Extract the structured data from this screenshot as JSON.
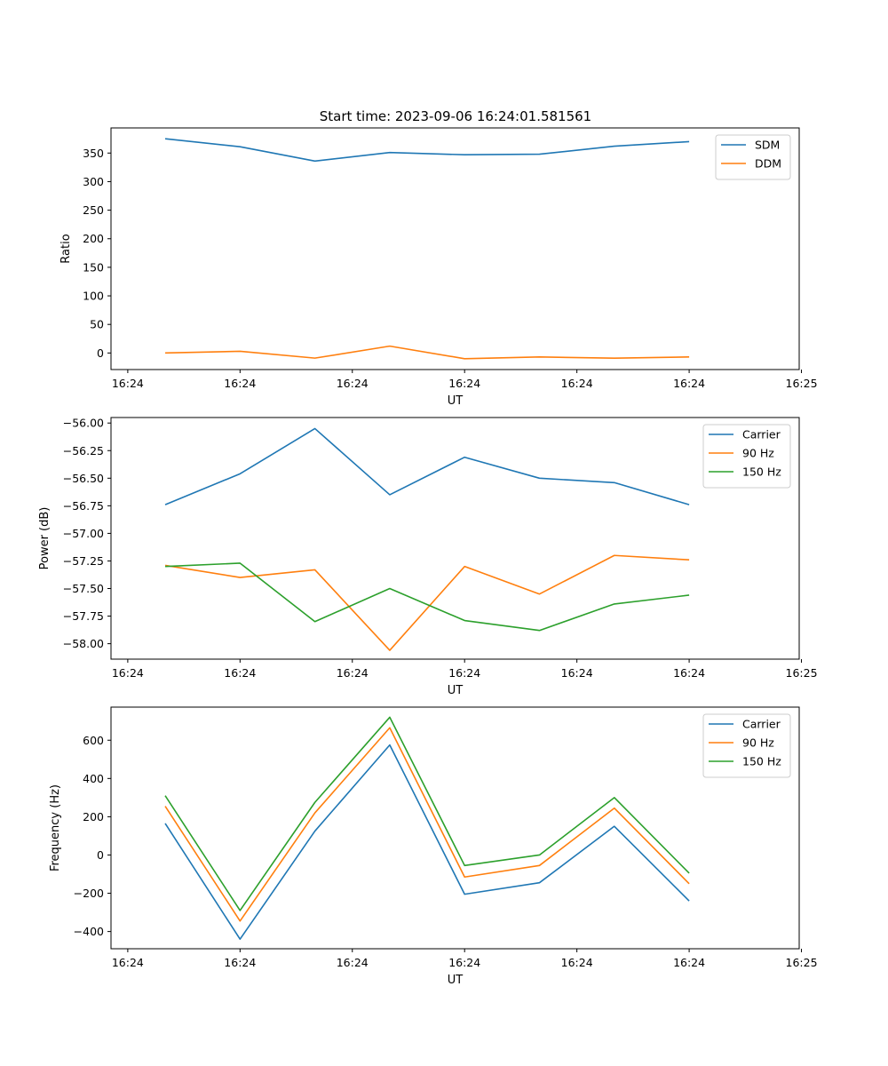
{
  "figure": {
    "title": "Start time: 2023-09-06 16:24:01.581561"
  },
  "chart_data": [
    {
      "type": "line",
      "title": "Start time: 2023-09-06 16:24:01.581561",
      "xlabel": "UT",
      "ylabel": "Ratio",
      "x": [
        1,
        2,
        3,
        4,
        5,
        6,
        7,
        8
      ],
      "xlim": [
        0.276,
        9.47
      ],
      "xticks": [
        0.5,
        2.0,
        3.5,
        5.0,
        6.5,
        8.0,
        9.5
      ],
      "xtick_labels": [
        "16:24",
        "16:24",
        "16:24",
        "16:24",
        "16:24",
        "16:24",
        "16:25"
      ],
      "ylim": [
        -29,
        394
      ],
      "yticks": [
        0,
        50,
        100,
        150,
        200,
        250,
        300,
        350
      ],
      "ytick_labels": [
        "0",
        "50",
        "100",
        "150",
        "200",
        "250",
        "300",
        "350"
      ],
      "legend": "top-right",
      "series": [
        {
          "name": "SDM",
          "color": "#1f77b4",
          "values": [
            375,
            361,
            336,
            351,
            347,
            348,
            362,
            370
          ]
        },
        {
          "name": "DDM",
          "color": "#ff7f0e",
          "values": [
            0,
            3,
            -9,
            12,
            -10,
            -7,
            -9,
            -7
          ]
        }
      ]
    },
    {
      "type": "line",
      "title": "",
      "xlabel": "UT",
      "ylabel": "Power (dB)",
      "x": [
        1,
        2,
        3,
        4,
        5,
        6,
        7,
        8
      ],
      "xlim": [
        0.276,
        9.47
      ],
      "xticks": [
        0.5,
        2.0,
        3.5,
        5.0,
        6.5,
        8.0,
        9.5
      ],
      "xtick_labels": [
        "16:24",
        "16:24",
        "16:24",
        "16:24",
        "16:24",
        "16:24",
        "16:25"
      ],
      "ylim": [
        -58.14,
        -55.95
      ],
      "yticks": [
        -56.0,
        -56.25,
        -56.5,
        -56.75,
        -57.0,
        -57.25,
        -57.5,
        -57.75,
        -58.0
      ],
      "ytick_labels": [
        "−56.00",
        "−56.25",
        "−56.50",
        "−56.75",
        "−57.00",
        "−57.25",
        "−57.50",
        "−57.75",
        "−58.00"
      ],
      "legend": "top-right",
      "series": [
        {
          "name": "Carrier",
          "color": "#1f77b4",
          "values": [
            -56.74,
            -56.46,
            -56.05,
            -56.65,
            -56.31,
            -56.5,
            -56.54,
            -56.74
          ]
        },
        {
          "name": "90 Hz",
          "color": "#ff7f0e",
          "values": [
            -57.29,
            -57.4,
            -57.33,
            -58.06,
            -57.3,
            -57.55,
            -57.2,
            -57.24
          ]
        },
        {
          "name": "150 Hz",
          "color": "#2ca02c",
          "values": [
            -57.3,
            -57.27,
            -57.8,
            -57.5,
            -57.79,
            -57.88,
            -57.64,
            -57.56
          ]
        }
      ]
    },
    {
      "type": "line",
      "title": "",
      "xlabel": "UT",
      "ylabel": "Frequency (Hz)",
      "x": [
        1,
        2,
        3,
        4,
        5,
        6,
        7,
        8
      ],
      "xlim": [
        0.276,
        9.47
      ],
      "xticks": [
        0.5,
        2.0,
        3.5,
        5.0,
        6.5,
        8.0,
        9.5
      ],
      "xtick_labels": [
        "16:24",
        "16:24",
        "16:24",
        "16:24",
        "16:24",
        "16:24",
        "16:25"
      ],
      "ylim": [
        -490,
        773
      ],
      "yticks": [
        -400,
        -200,
        0,
        200,
        400,
        600
      ],
      "ytick_labels": [
        "−400",
        "−200",
        "0",
        "200",
        "400",
        "600"
      ],
      "legend": "top-right",
      "series": [
        {
          "name": "Carrier",
          "color": "#1f77b4",
          "values": [
            165,
            -440,
            125,
            575,
            -205,
            -145,
            150,
            -240
          ]
        },
        {
          "name": "90 Hz",
          "color": "#ff7f0e",
          "values": [
            255,
            -345,
            220,
            665,
            -115,
            -55,
            245,
            -150
          ]
        },
        {
          "name": "150 Hz",
          "color": "#2ca02c",
          "values": [
            310,
            -290,
            275,
            720,
            -55,
            0,
            300,
            -95
          ]
        }
      ]
    }
  ]
}
